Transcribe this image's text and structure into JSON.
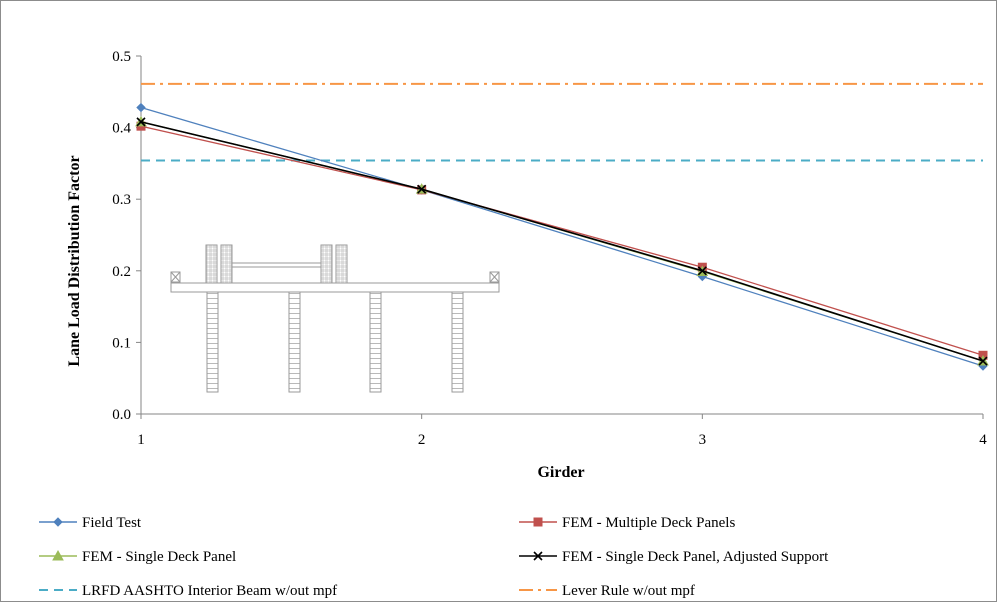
{
  "chart_data": {
    "type": "line",
    "xlabel": "Girder",
    "ylabel": "Lane Load Distribution Factor",
    "x": [
      1,
      2,
      3,
      4
    ],
    "xlim": [
      1,
      4
    ],
    "ylim": [
      0,
      0.5
    ],
    "y_ticks": [
      "0.0",
      "0.1",
      "0.2",
      "0.3",
      "0.4",
      "0.5"
    ],
    "x_ticks": [
      "1",
      "2",
      "3",
      "4"
    ],
    "grid": false,
    "legend_position": "bottom",
    "series": [
      {
        "name": "Field Test",
        "values": [
          0.428,
          0.313,
          0.192,
          0.067
        ],
        "color": "#4f81bd",
        "marker": "diamond",
        "dash": "solid"
      },
      {
        "name": "FEM - Multiple Deck Panels",
        "values": [
          0.402,
          0.313,
          0.205,
          0.082
        ],
        "color": "#c0504d",
        "marker": "square",
        "dash": "solid"
      },
      {
        "name": "FEM - Single Deck Panel",
        "values": [
          0.408,
          0.314,
          0.199,
          0.074
        ],
        "color": "#9bbb59",
        "marker": "triangle",
        "dash": "solid"
      },
      {
        "name": "FEM - Single Deck Panel, Adjusted Support",
        "values": [
          0.408,
          0.314,
          0.2,
          0.074
        ],
        "color": "#000000",
        "marker": "x",
        "dash": "solid"
      },
      {
        "name": "LRFD AASHTO Interior Beam w/out mpf",
        "values": [
          0.354,
          0.354,
          0.354,
          0.354
        ],
        "color": "#4bacc6",
        "marker": "none",
        "dash": "dash"
      },
      {
        "name": "Lever Rule w/out mpf",
        "values": [
          0.461,
          0.461,
          0.461,
          0.461
        ],
        "color": "#f79646",
        "marker": "none",
        "dash": "dashdot"
      }
    ],
    "inset": "bridge cross-section sketch: deck with 4 girders and 2 truck wheel loads"
  }
}
